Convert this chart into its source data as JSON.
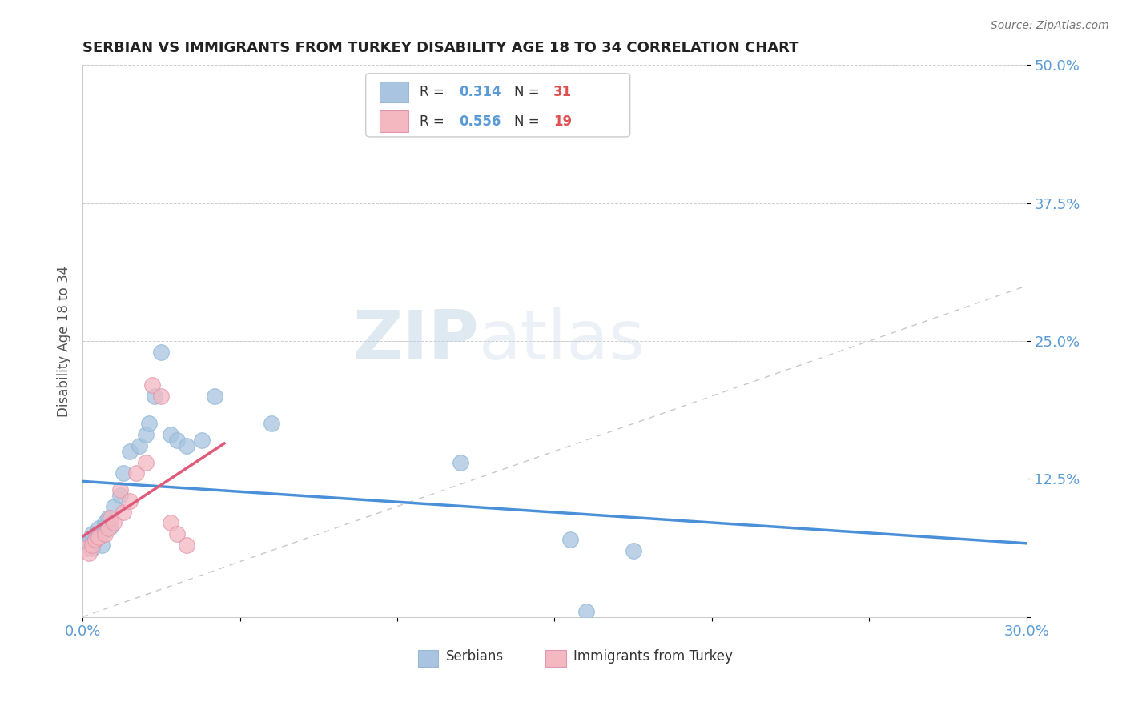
{
  "title": "SERBIAN VS IMMIGRANTS FROM TURKEY DISABILITY AGE 18 TO 34 CORRELATION CHART",
  "source": "Source: ZipAtlas.com",
  "ylabel": "Disability Age 18 to 34",
  "xlim": [
    0.0,
    0.3
  ],
  "ylim": [
    0.0,
    0.5
  ],
  "xtick_pos": [
    0.0,
    0.05,
    0.1,
    0.15,
    0.2,
    0.25,
    0.3
  ],
  "xtick_labels": [
    "0.0%",
    "",
    "",
    "",
    "",
    "",
    "30.0%"
  ],
  "ytick_pos": [
    0.0,
    0.125,
    0.25,
    0.375,
    0.5
  ],
  "ytick_labels": [
    "",
    "12.5%",
    "25.0%",
    "37.5%",
    "50.0%"
  ],
  "serbian_R": 0.314,
  "serbian_N": 31,
  "turkish_R": 0.556,
  "turkish_N": 19,
  "serbian_color": "#a8c4e0",
  "turkish_color": "#f4b8c1",
  "serbian_line_color": "#4a90d9",
  "turkish_line_color": "#e05a7a",
  "diagonal_color": "#c8c8c8",
  "background_color": "#ffffff",
  "serbian_x": [
    0.001,
    0.002,
    0.003,
    0.003,
    0.004,
    0.005,
    0.005,
    0.006,
    0.007,
    0.007,
    0.008,
    0.009,
    0.01,
    0.012,
    0.013,
    0.015,
    0.018,
    0.02,
    0.021,
    0.023,
    0.025,
    0.028,
    0.03,
    0.033,
    0.038,
    0.042,
    0.06,
    0.12,
    0.155,
    0.16,
    0.175
  ],
  "serbian_y": [
    0.065,
    0.068,
    0.062,
    0.075,
    0.07,
    0.072,
    0.08,
    0.065,
    0.078,
    0.085,
    0.09,
    0.082,
    0.1,
    0.11,
    0.13,
    0.15,
    0.155,
    0.165,
    0.175,
    0.2,
    0.24,
    0.165,
    0.16,
    0.155,
    0.16,
    0.2,
    0.175,
    0.14,
    0.07,
    0.005,
    0.06
  ],
  "turkish_x": [
    0.001,
    0.002,
    0.003,
    0.004,
    0.005,
    0.007,
    0.008,
    0.009,
    0.01,
    0.012,
    0.013,
    0.015,
    0.017,
    0.02,
    0.022,
    0.025,
    0.028,
    0.03,
    0.033
  ],
  "turkish_y": [
    0.062,
    0.058,
    0.065,
    0.07,
    0.072,
    0.075,
    0.08,
    0.09,
    0.085,
    0.115,
    0.095,
    0.105,
    0.13,
    0.14,
    0.21,
    0.2,
    0.085,
    0.075,
    0.065
  ]
}
